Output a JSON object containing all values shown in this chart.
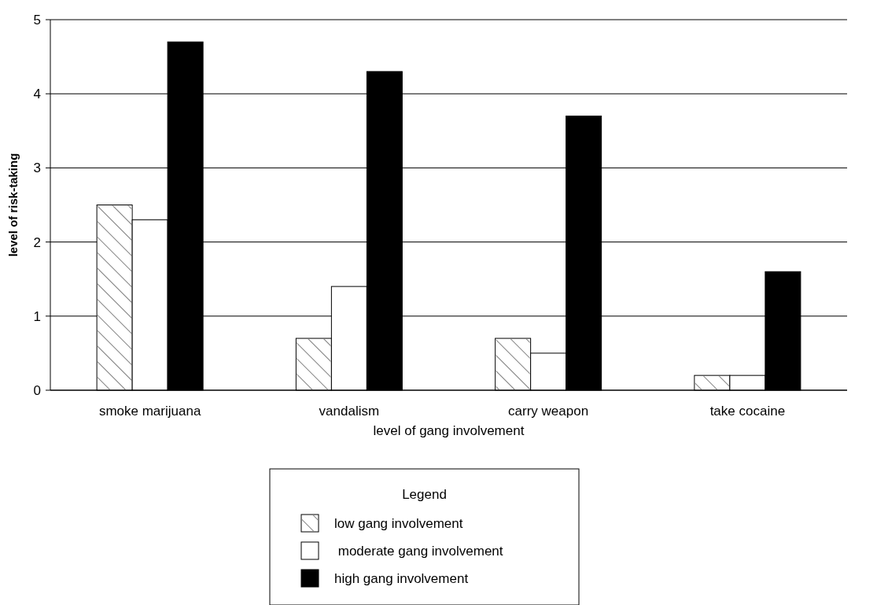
{
  "chart_data": {
    "type": "bar",
    "xlabel": "level of gang involvement",
    "ylabel": "level of risk-taking",
    "legend_title": "Legend",
    "legend": "bottom",
    "grid": "y",
    "categories": [
      "smoke marijuana",
      "vandalism",
      "carry weapon",
      "take cocaine"
    ],
    "series": [
      {
        "name": "low gang involvement",
        "color": "#ffffff",
        "values": [
          2.5,
          0.7,
          0.7,
          0.2
        ]
      },
      {
        "name": " moderate gang involvement",
        "color": "#ffffff",
        "values": [
          2.3,
          1.4,
          0.5,
          0.2
        ]
      },
      {
        "name": "high gang involvement",
        "color": "#000000",
        "values": [
          4.7,
          4.3,
          3.7,
          1.6
        ]
      }
    ],
    "ylim": [
      0,
      5
    ],
    "yticks": [
      0,
      1,
      2,
      3,
      4,
      5
    ]
  }
}
